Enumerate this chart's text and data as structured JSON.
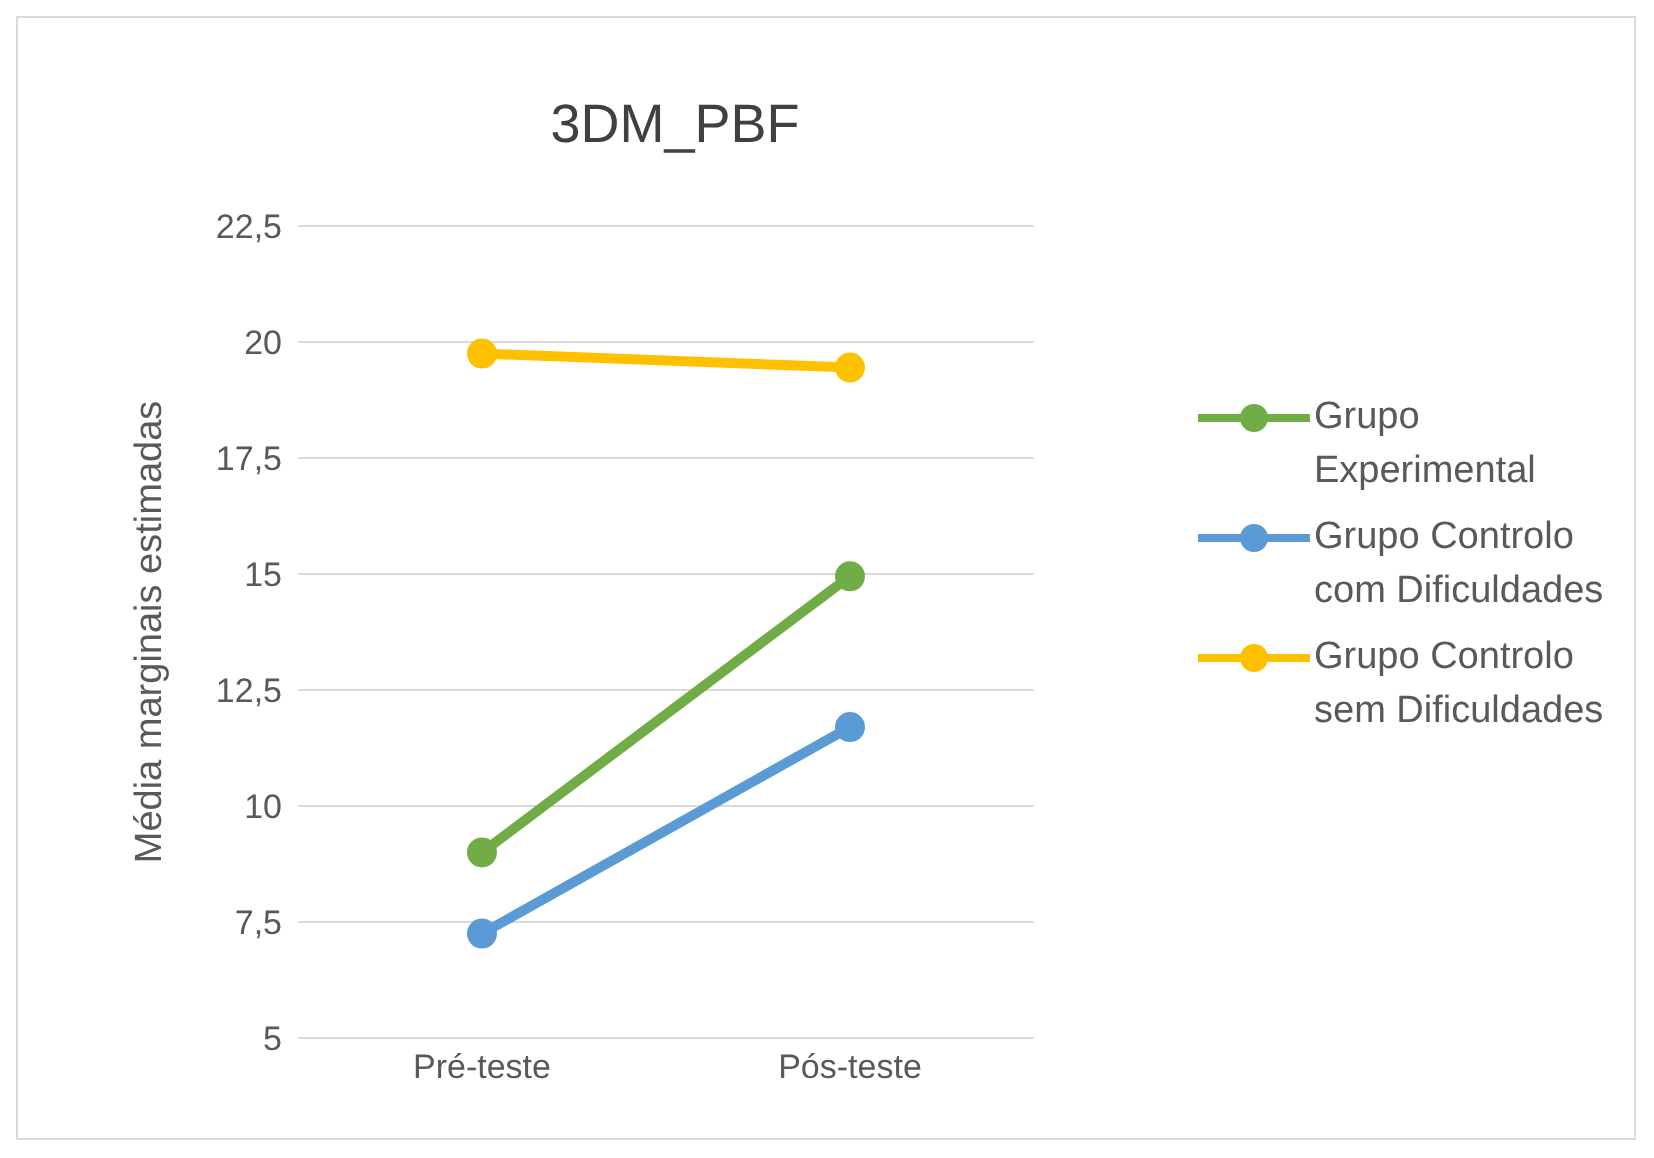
{
  "chart_data": {
    "type": "line",
    "title": "3DM_PBF",
    "ylabel": "Média marginais estimadas",
    "categories": [
      "Pré-teste",
      "Pós-teste"
    ],
    "series": [
      {
        "name": "Grupo Experimental",
        "color": "#70ad47",
        "values": [
          9.0,
          14.95
        ]
      },
      {
        "name": "Grupo Controlo com Dificuldades",
        "color": "#5b9bd5",
        "values": [
          7.25,
          11.7
        ]
      },
      {
        "name": "Grupo Controlo sem Dificuldades",
        "color": "#ffc000",
        "values": [
          19.75,
          19.45
        ]
      }
    ],
    "ylim": [
      5,
      22.5
    ],
    "yticks": [
      5,
      {
        "value": 7.5,
        "label": "7,5"
      },
      10,
      {
        "value": 12.5,
        "label": "12,5"
      },
      15,
      {
        "value": 17.5,
        "label": "17,5"
      },
      20,
      {
        "value": 22.5,
        "label": "22,5"
      }
    ],
    "grid": "y",
    "legend": "right",
    "marker": "circle",
    "line_style": "solid"
  }
}
